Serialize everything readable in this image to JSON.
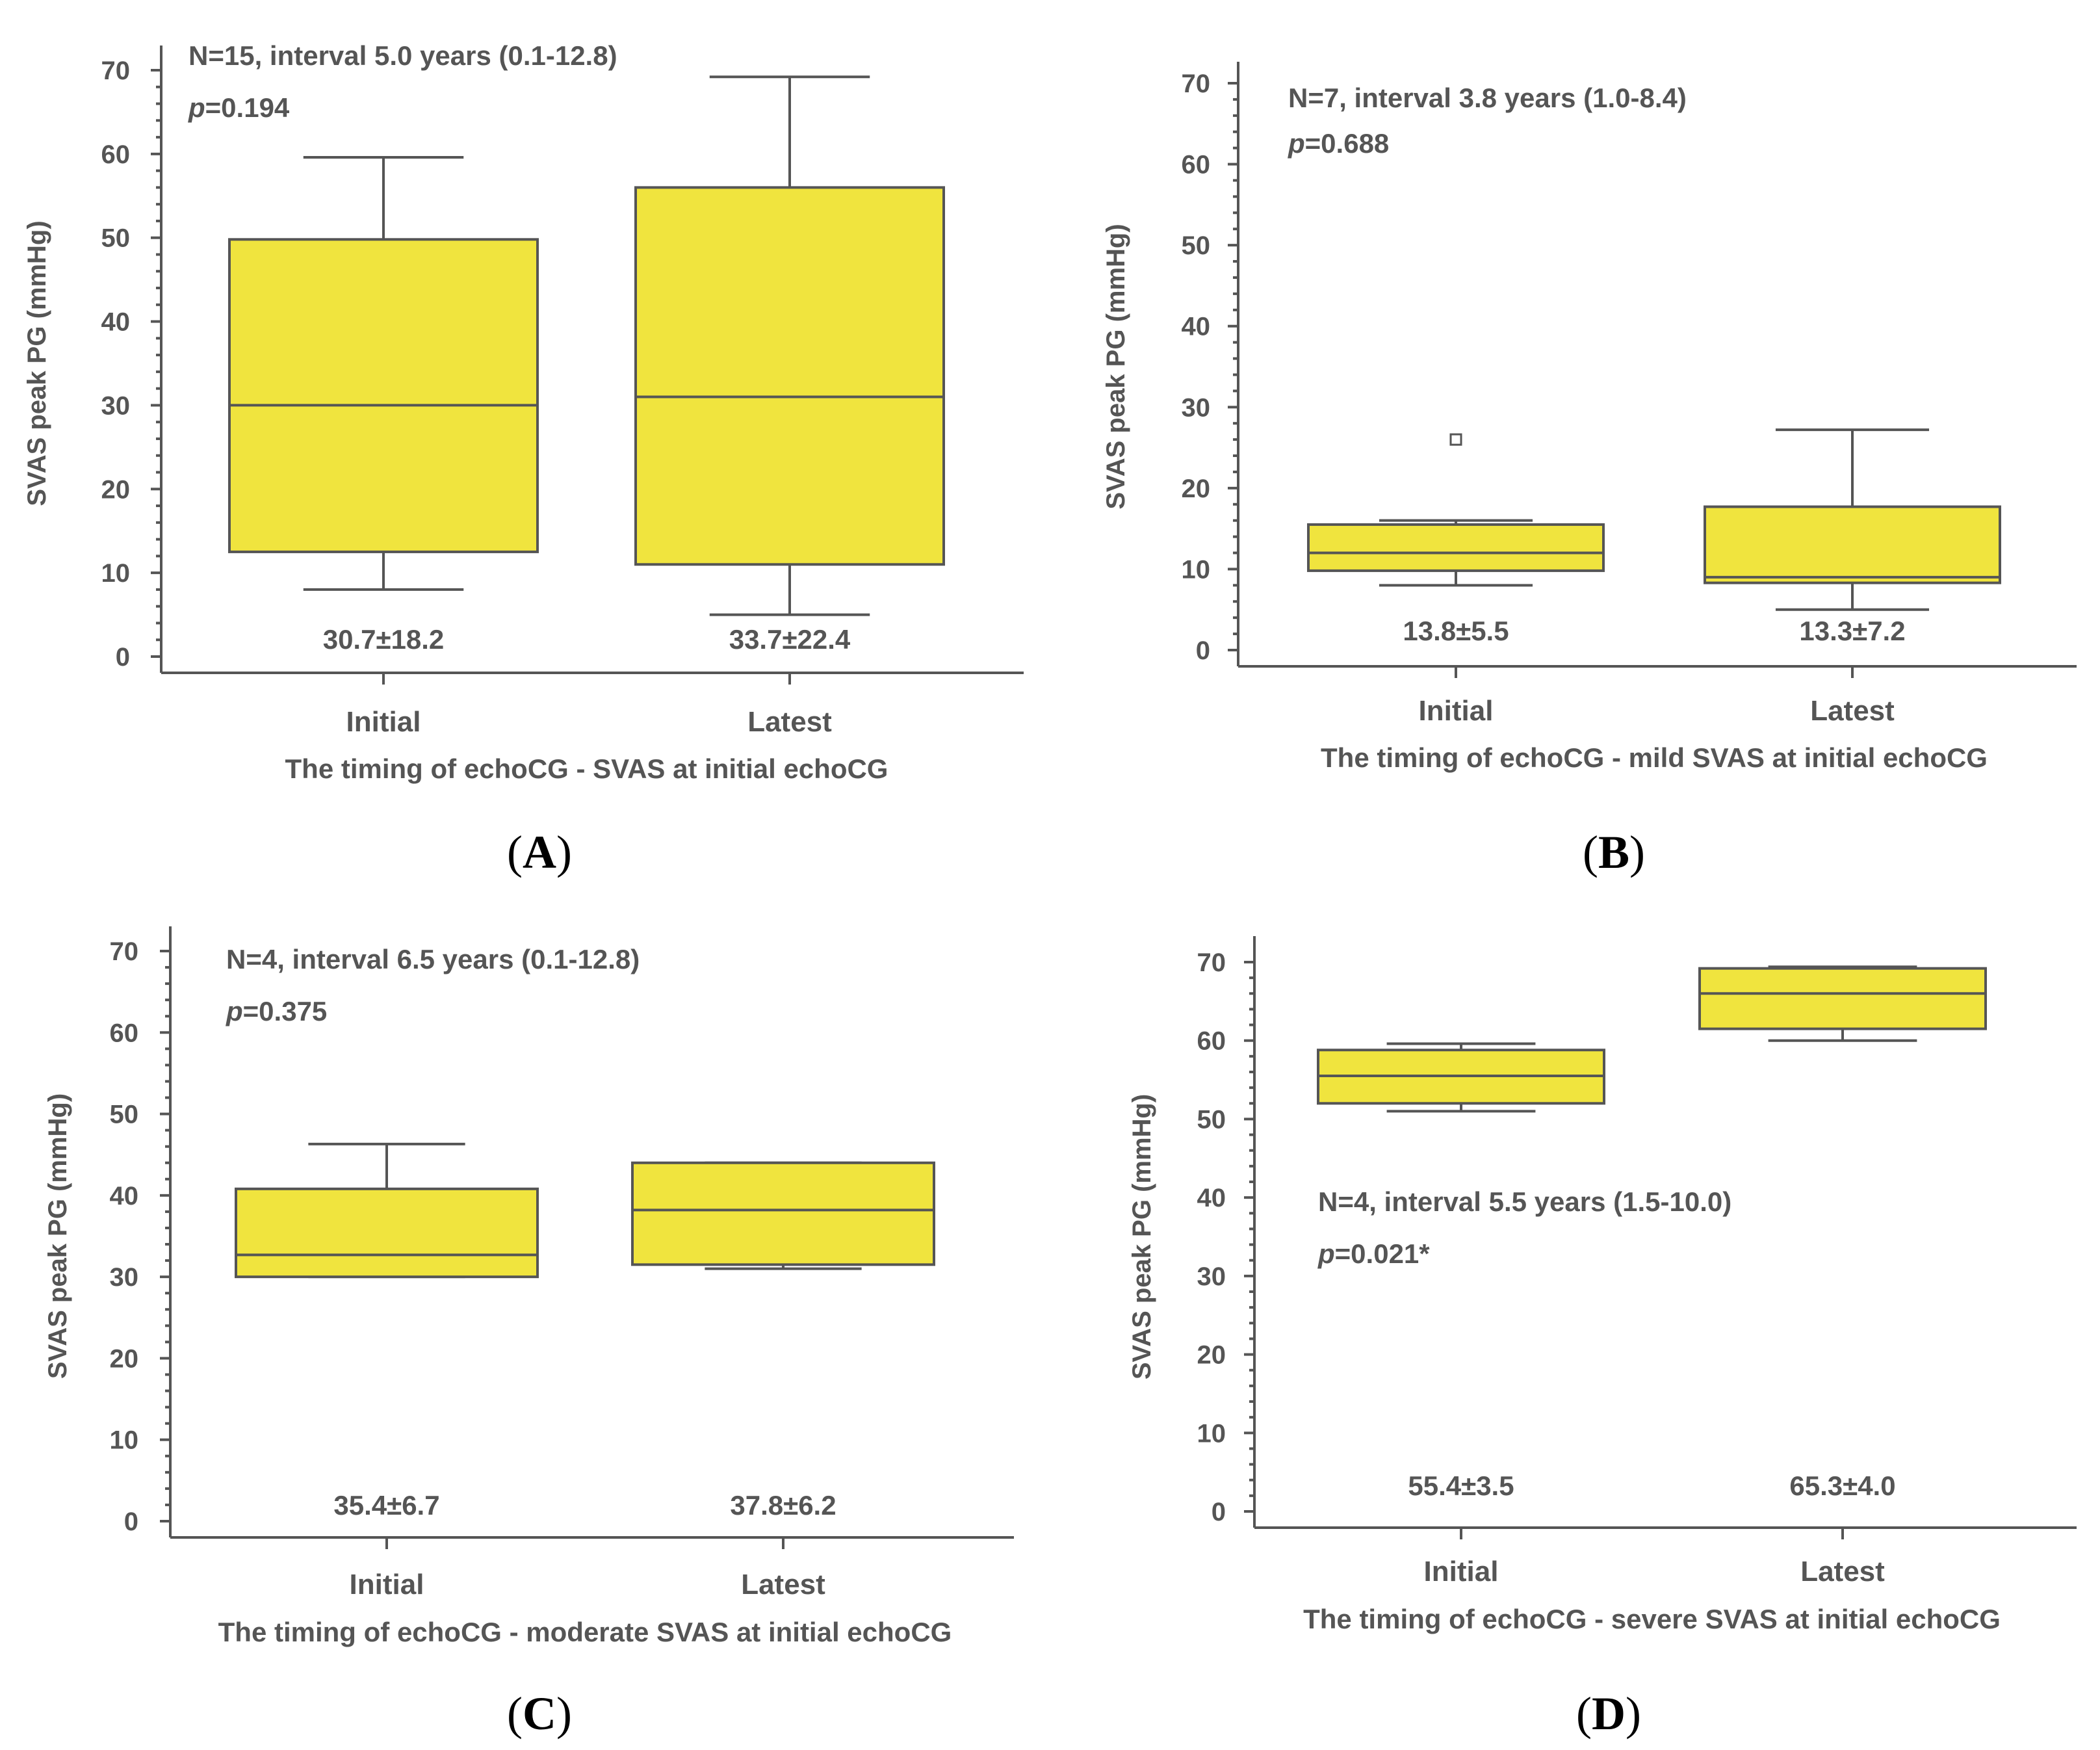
{
  "colors": {
    "box_fill": "#f0e43e",
    "line": "#555555",
    "text": "#555555",
    "label": "#000000"
  },
  "chart_data": [
    {
      "type": "box",
      "panel": "(A)",
      "panel_letter": "A",
      "categories": [
        "Initial",
        "Latest"
      ],
      "xlabel": "The timing of echoCG - SVAS at initial echoCG",
      "ylabel": "SVAS peak PG (mmHg)",
      "ylim": [
        0,
        70
      ],
      "yticks": [
        "0",
        "10",
        "20",
        "30",
        "40",
        "50",
        "60",
        "70"
      ],
      "annotation_n": "N=15, interval 5.0 years (0.1-12.8)",
      "annotation_p_prefix": "p",
      "annotation_p_value": "=0.194",
      "boxes": [
        {
          "category": "Initial",
          "min": 8,
          "q1": 12.5,
          "median": 30,
          "q3": 49.8,
          "max": 59.6,
          "outliers": [],
          "mean_sd": "30.7±18.2"
        },
        {
          "category": "Latest",
          "min": 5,
          "q1": 11,
          "median": 31,
          "q3": 56,
          "max": 69.2,
          "outliers": [],
          "mean_sd": "33.7±22.4"
        }
      ]
    },
    {
      "type": "box",
      "panel": "(B)",
      "panel_letter": "B",
      "categories": [
        "Initial",
        "Latest"
      ],
      "xlabel": "The timing of echoCG - mild SVAS at initial echoCG",
      "ylabel": "SVAS peak PG (mmHg)",
      "ylim": [
        0,
        70
      ],
      "yticks": [
        "0",
        "10",
        "20",
        "30",
        "40",
        "50",
        "60",
        "70"
      ],
      "annotation_n": "N=7, interval 3.8 years (1.0-8.4)",
      "annotation_p_prefix": "p",
      "annotation_p_value": "=0.688",
      "boxes": [
        {
          "category": "Initial",
          "min": 8,
          "q1": 9.8,
          "median": 12,
          "q3": 15.5,
          "max": 16,
          "outliers": [
            26
          ],
          "mean_sd": "13.8±5.5"
        },
        {
          "category": "Latest",
          "min": 5,
          "q1": 8.3,
          "median": 9,
          "q3": 17.7,
          "max": 27.2,
          "outliers": [],
          "mean_sd": "13.3±7.2"
        }
      ]
    },
    {
      "type": "box",
      "panel": "(C)",
      "panel_letter": "C",
      "categories": [
        "Initial",
        "Latest"
      ],
      "xlabel": "The timing of echoCG - moderate SVAS at initial echoCG",
      "ylabel": "SVAS peak PG (mmHg)",
      "ylim": [
        0,
        70
      ],
      "yticks": [
        "0",
        "10",
        "20",
        "30",
        "40",
        "50",
        "60",
        "70"
      ],
      "annotation_n": "N=4, interval 6.5 years (0.1-12.8)",
      "annotation_p_prefix": "p",
      "annotation_p_value": "=0.375",
      "boxes": [
        {
          "category": "Initial",
          "min": 30,
          "q1": 30,
          "median": 32.7,
          "q3": 40.8,
          "max": 46.3,
          "outliers": [],
          "mean_sd": "35.4±6.7"
        },
        {
          "category": "Latest",
          "min": 31,
          "q1": 31.5,
          "median": 38.2,
          "q3": 44,
          "max": 44,
          "outliers": [],
          "mean_sd": "37.8±6.2"
        }
      ]
    },
    {
      "type": "box",
      "panel": "(D)",
      "panel_letter": "D",
      "categories": [
        "Initial",
        "Latest"
      ],
      "xlabel": "The timing of echoCG - severe SVAS at initial echoCG",
      "ylabel": "SVAS peak PG (mmHg)",
      "ylim": [
        0,
        70
      ],
      "yticks": [
        "0",
        "10",
        "20",
        "30",
        "40",
        "50",
        "60",
        "70"
      ],
      "annotation_n": "N=4, interval 5.5 years (1.5-10.0)",
      "annotation_p_prefix": "p",
      "annotation_p_value": "=0.021*",
      "boxes": [
        {
          "category": "Initial",
          "min": 51,
          "q1": 52,
          "median": 55.5,
          "q3": 58.8,
          "max": 59.6,
          "outliers": [],
          "mean_sd": "55.4±3.5"
        },
        {
          "category": "Latest",
          "min": 60,
          "q1": 61.5,
          "median": 66,
          "q3": 69.2,
          "max": 69.4,
          "outliers": [],
          "mean_sd": "65.3±4.0"
        }
      ]
    }
  ]
}
